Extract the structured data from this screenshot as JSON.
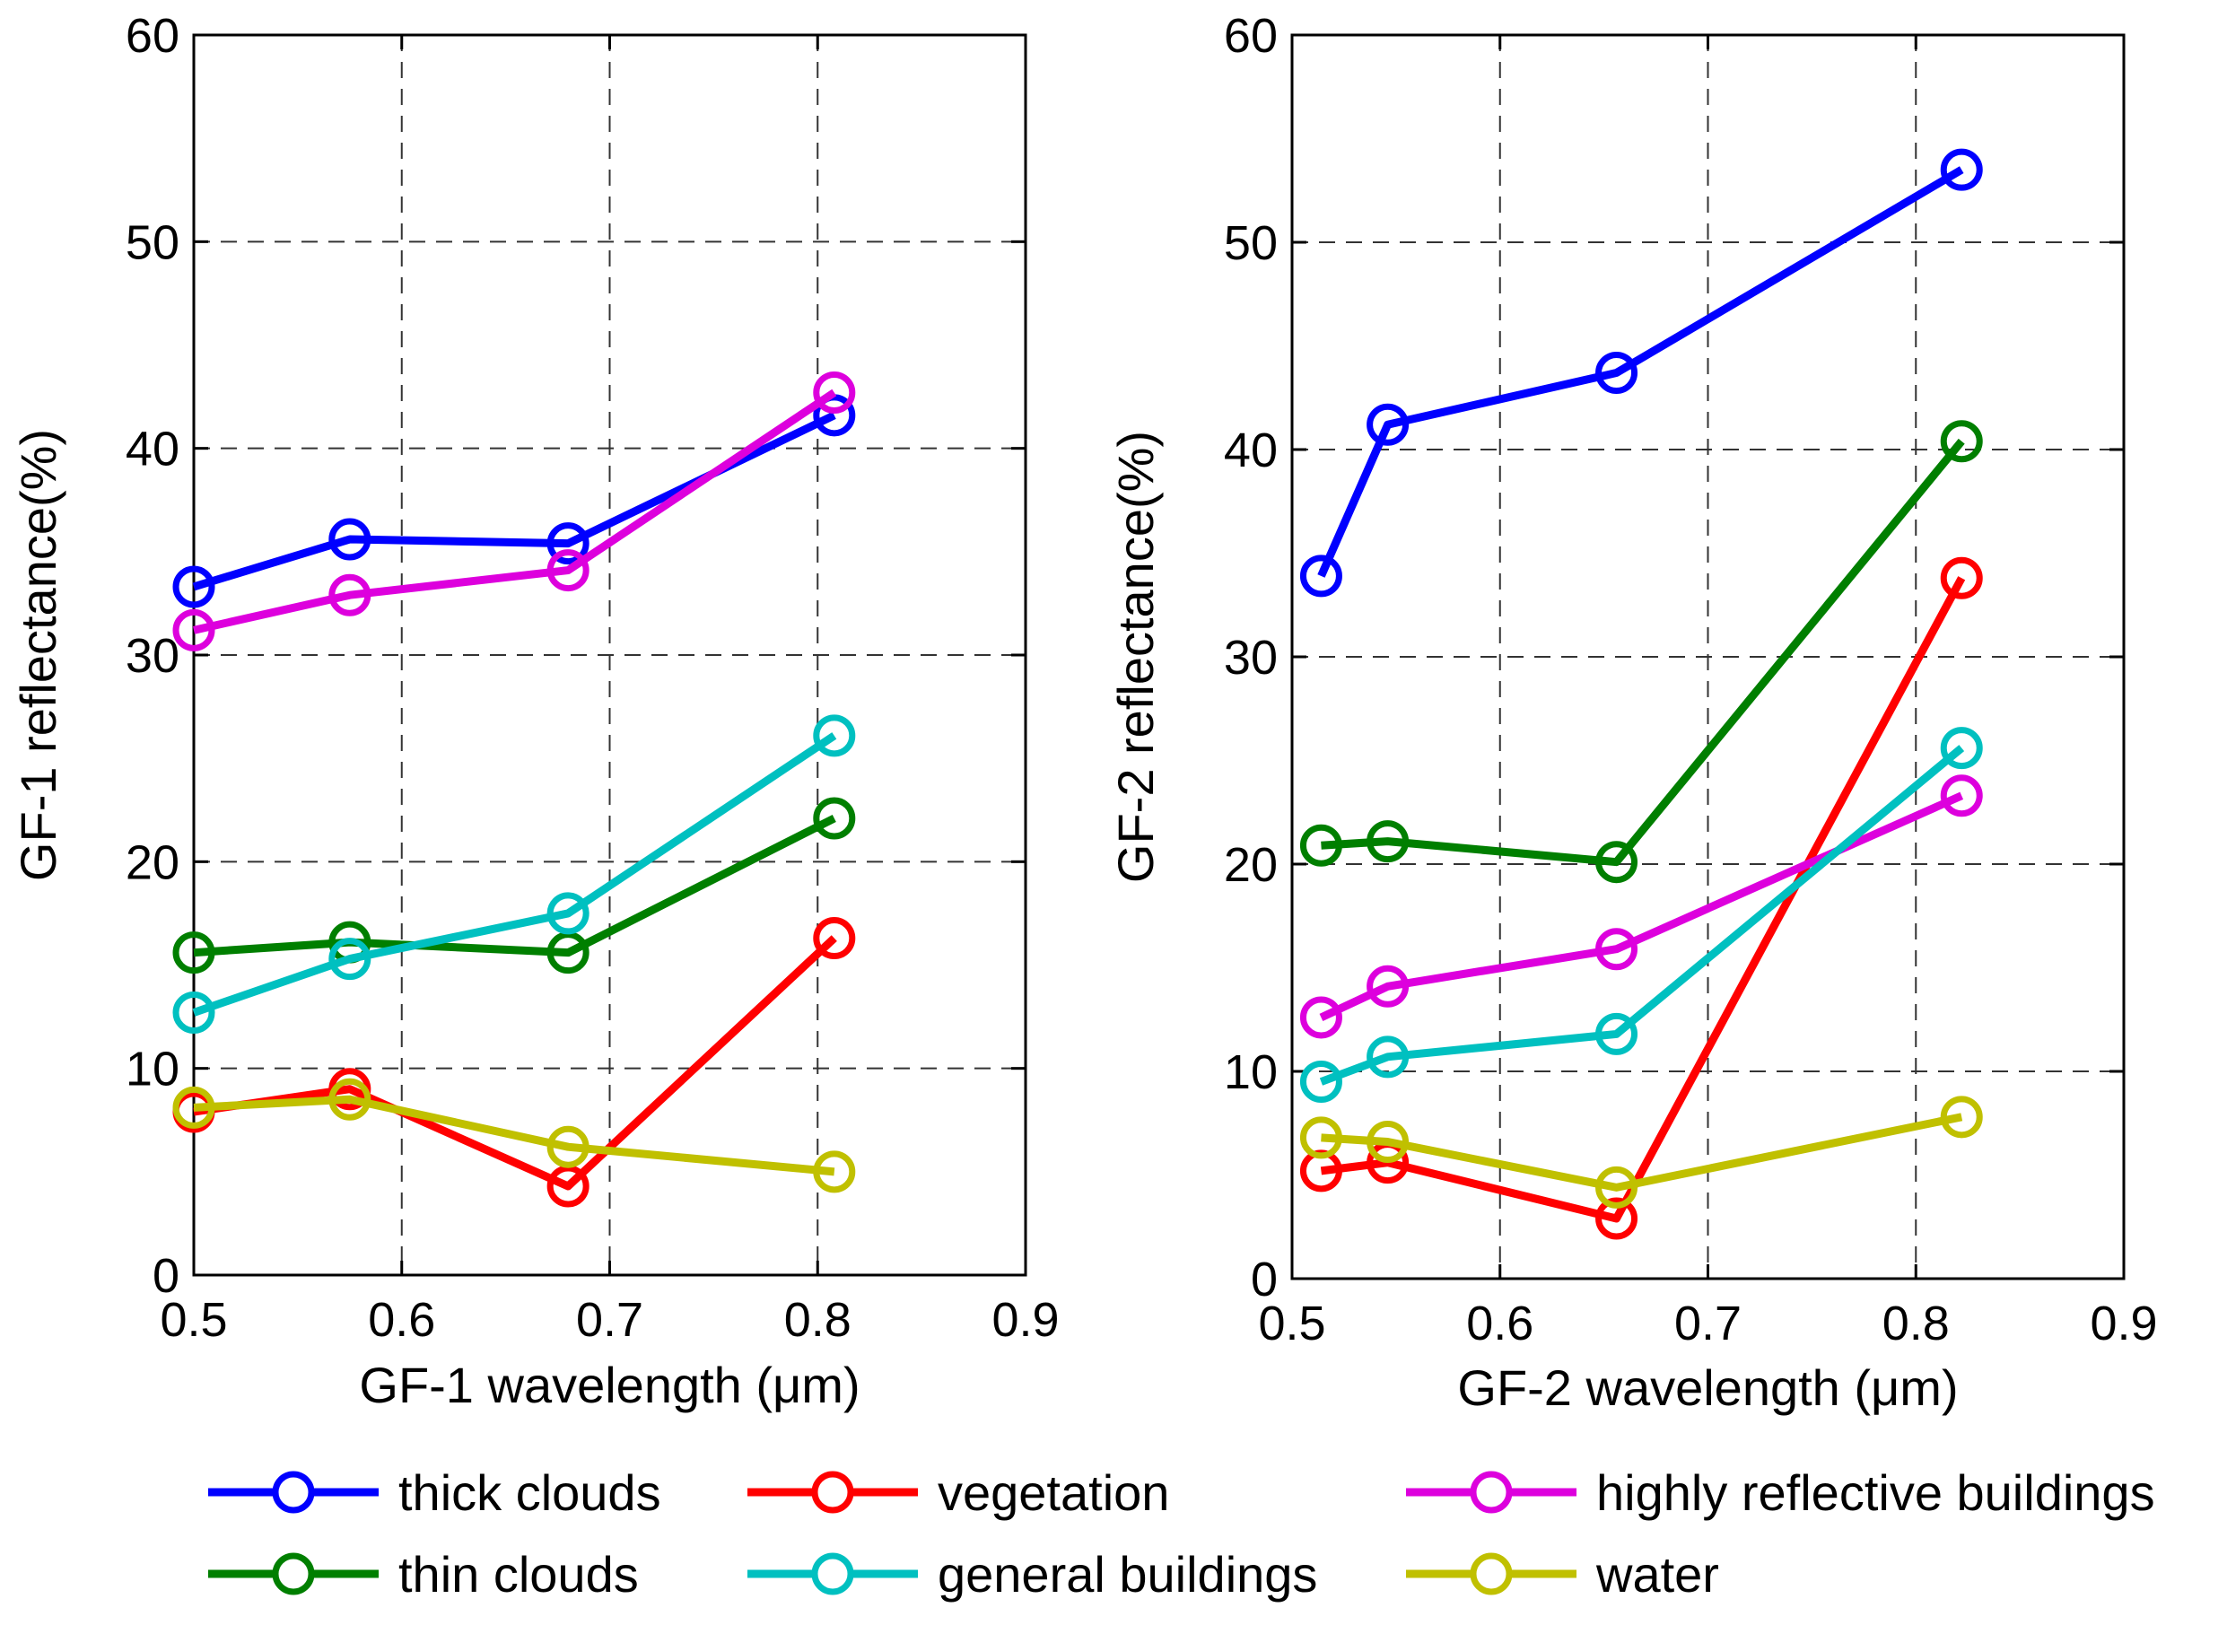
{
  "legend": {
    "placement": "bottom",
    "entries": [
      {
        "label": "thick clouds",
        "color": "#0000ff"
      },
      {
        "label": "vegetation",
        "color": "#ff0000"
      },
      {
        "label": "highly reflective buildings",
        "color": "#dd00dd"
      },
      {
        "label": "thin clouds",
        "color": "#007f00"
      },
      {
        "label": "general buildings",
        "color": "#00c0c0"
      },
      {
        "label": "water",
        "color": "#c0c000"
      }
    ]
  },
  "chart_data": [
    {
      "type": "line",
      "xlabel": "GF-1 wavelength (μm)",
      "ylabel": "GF-1 reflectance(%)",
      "xlim": [
        0.5,
        0.9
      ],
      "ylim": [
        0,
        60
      ],
      "xticks": [
        0.5,
        0.6,
        0.7,
        0.8,
        0.9
      ],
      "xtick_labels": [
        "0.5",
        "0.6",
        "0.7",
        "0.8",
        "0.9"
      ],
      "yticks": [
        0,
        10,
        20,
        30,
        40,
        50,
        60
      ],
      "ytick_labels": [
        "0",
        "10",
        "20",
        "30",
        "40",
        "50",
        "60"
      ],
      "grid": true,
      "x": [
        0.5,
        0.575,
        0.68,
        0.808
      ],
      "series": [
        {
          "name": "thick clouds",
          "color": "#0000ff",
          "values": [
            33.3,
            35.6,
            35.4,
            41.6
          ]
        },
        {
          "name": "vegetation",
          "color": "#ff0000",
          "values": [
            7.9,
            9.0,
            4.3,
            16.3
          ]
        },
        {
          "name": "highly reflective buildings",
          "color": "#dd00dd",
          "values": [
            31.2,
            32.9,
            34.1,
            42.7
          ]
        },
        {
          "name": "thin clouds",
          "color": "#007f00",
          "values": [
            15.6,
            16.1,
            15.6,
            22.1
          ]
        },
        {
          "name": "general buildings",
          "color": "#00c0c0",
          "values": [
            12.7,
            15.3,
            17.5,
            26.1
          ]
        },
        {
          "name": "water",
          "color": "#c0c000",
          "values": [
            8.1,
            8.5,
            6.2,
            5.0
          ]
        }
      ]
    },
    {
      "type": "line",
      "xlabel": "GF-2 wavelength (μm)",
      "ylabel": "GF-2 reflectance(%)",
      "xlim": [
        0.5,
        0.9
      ],
      "ylim": [
        0,
        60
      ],
      "xticks": [
        0.5,
        0.6,
        0.7,
        0.8,
        0.9
      ],
      "xtick_labels": [
        "0.5",
        "0.6",
        "0.7",
        "0.8",
        "0.9"
      ],
      "yticks": [
        0,
        10,
        20,
        30,
        40,
        50,
        60
      ],
      "ytick_labels": [
        "0",
        "10",
        "20",
        "30",
        "40",
        "50",
        "60"
      ],
      "grid": true,
      "x": [
        0.514,
        0.546,
        0.656,
        0.822
      ],
      "series": [
        {
          "name": "thick clouds",
          "color": "#0000ff",
          "values": [
            33.9,
            41.2,
            43.7,
            53.5
          ]
        },
        {
          "name": "vegetation",
          "color": "#ff0000",
          "values": [
            5.2,
            5.6,
            2.9,
            33.8
          ]
        },
        {
          "name": "highly reflective buildings",
          "color": "#dd00dd",
          "values": [
            12.6,
            14.1,
            15.9,
            23.3
          ]
        },
        {
          "name": "thin clouds",
          "color": "#007f00",
          "values": [
            20.9,
            21.1,
            20.1,
            40.4
          ]
        },
        {
          "name": "general buildings",
          "color": "#00c0c0",
          "values": [
            9.5,
            10.7,
            11.8,
            25.6
          ]
        },
        {
          "name": "water",
          "color": "#c0c000",
          "values": [
            6.8,
            6.6,
            4.4,
            7.8
          ]
        }
      ]
    }
  ]
}
